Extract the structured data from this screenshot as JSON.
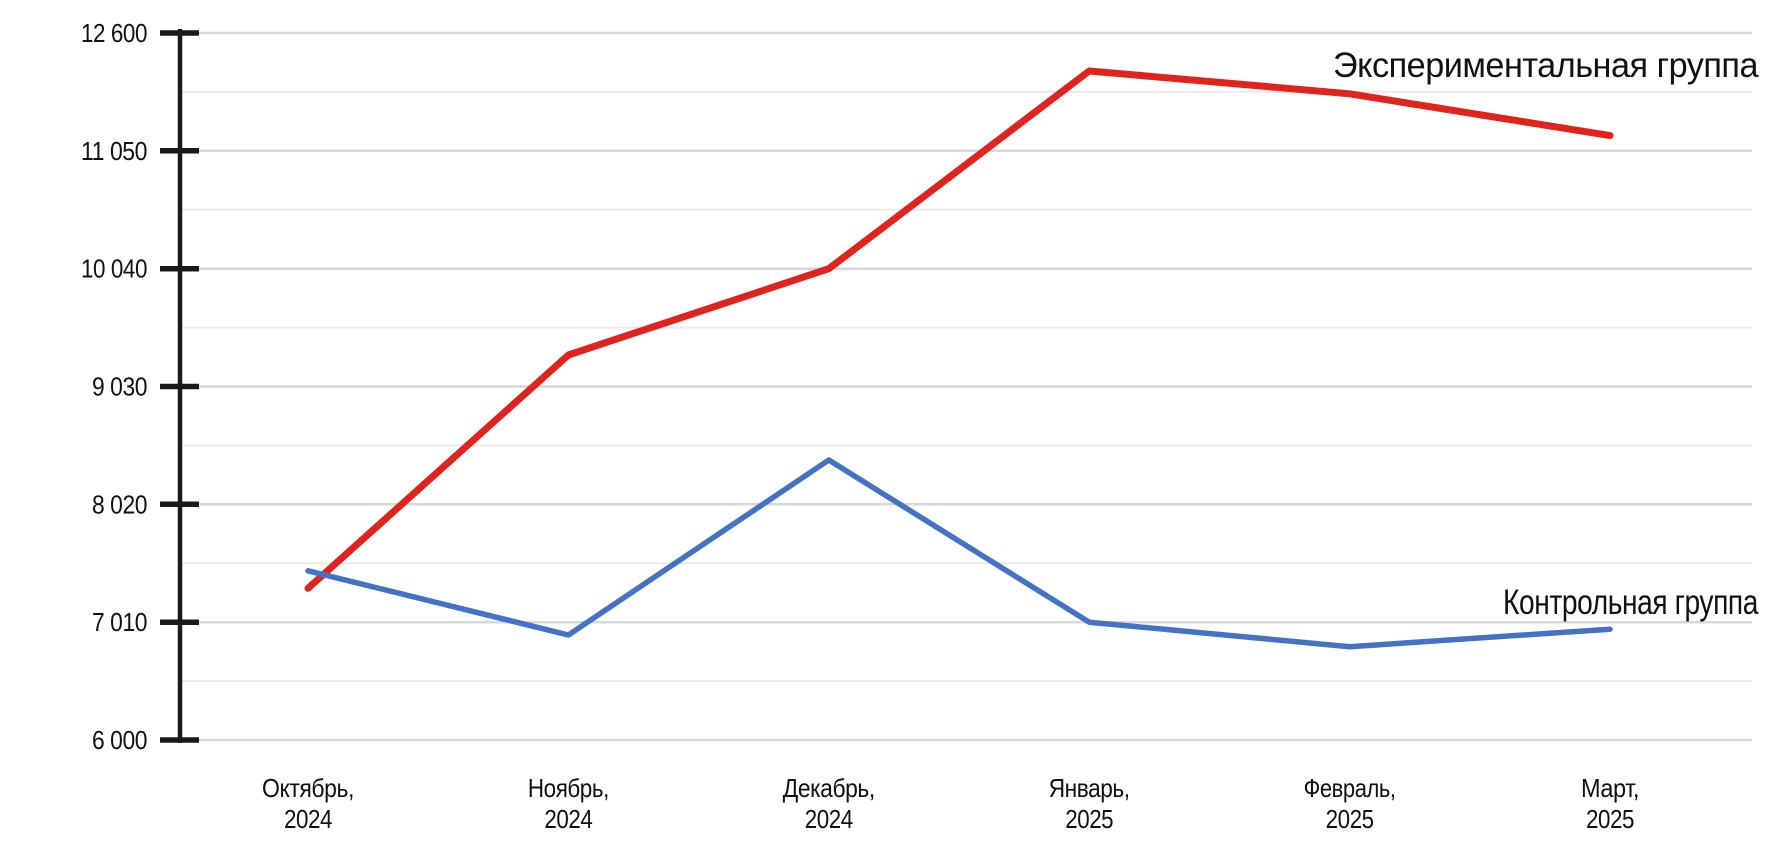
{
  "chart_data": {
    "type": "line",
    "title": "",
    "xlabel": "",
    "ylabel": "",
    "categories": [
      [
        "Октябрь,",
        "2024"
      ],
      [
        "Ноябрь,",
        "2024"
      ],
      [
        "Декабрь,",
        "2024"
      ],
      [
        "Январь,",
        "2025"
      ],
      [
        "Февраль,",
        "2025"
      ],
      [
        "Март,",
        "2025"
      ]
    ],
    "series": [
      {
        "name": "Экспериментальная группа",
        "color": "#e0231d",
        "stroke_width": 7,
        "values": [
          7300,
          9300,
          10040,
          12100,
          11800,
          11250
        ]
      },
      {
        "name": "Контрольная группа",
        "color": "#4472c4",
        "stroke_width": 5.5,
        "values": [
          7450,
          6900,
          8400,
          7010,
          6800,
          6950
        ]
      }
    ],
    "y_axis": {
      "tick_labels": [
        "6 000",
        "7 010",
        "8 020",
        "9 030",
        "10 040",
        "11 050",
        "12 600"
      ],
      "tick_values": [
        6000,
        7010,
        8020,
        9030,
        10040,
        11050,
        12600
      ],
      "min_label": "6 000",
      "max_label": "12 600"
    },
    "grid": "horizontal major and minor lines, on",
    "legend_position": "inline labels at right of lines",
    "colors": {
      "axis": "#1a1a1a",
      "grid_major": "#d8d8d8",
      "grid_minor": "#ebebeb",
      "text": "#111111",
      "background": "#ffffff"
    }
  }
}
